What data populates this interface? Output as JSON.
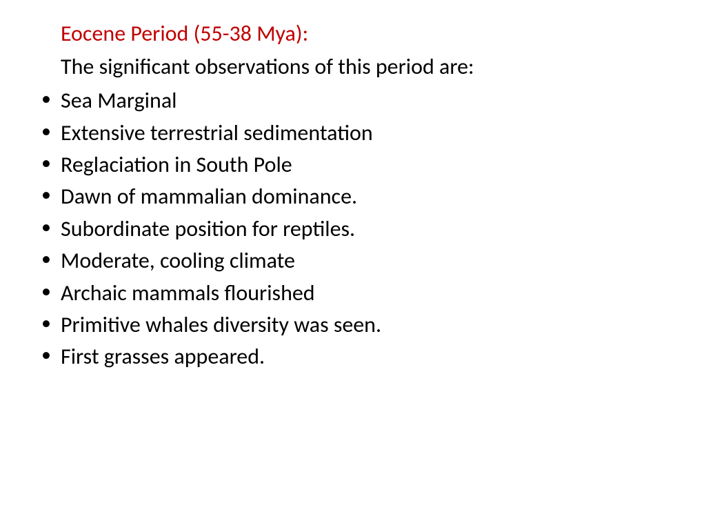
{
  "title": {
    "text": "Eocene Period (55-38 Mya):",
    "color": "#c00000"
  },
  "subtitle": "The significant observations of this period are:",
  "bullets": [
    "Sea Marginal",
    "Extensive terrestrial sedimentation",
    "Reglaciation in South Pole",
    "Dawn of mammalian dominance.",
    "Subordinate position for reptiles.",
    "Moderate, cooling climate",
    "Archaic mammals flourished",
    "Primitive whales diversity was seen.",
    "First grasses appeared."
  ],
  "styling": {
    "background_color": "#ffffff",
    "body_text_color": "#000000",
    "font_family": "Calibri",
    "title_fontsize": 32,
    "body_fontsize": 32,
    "bullet_char": "•"
  }
}
